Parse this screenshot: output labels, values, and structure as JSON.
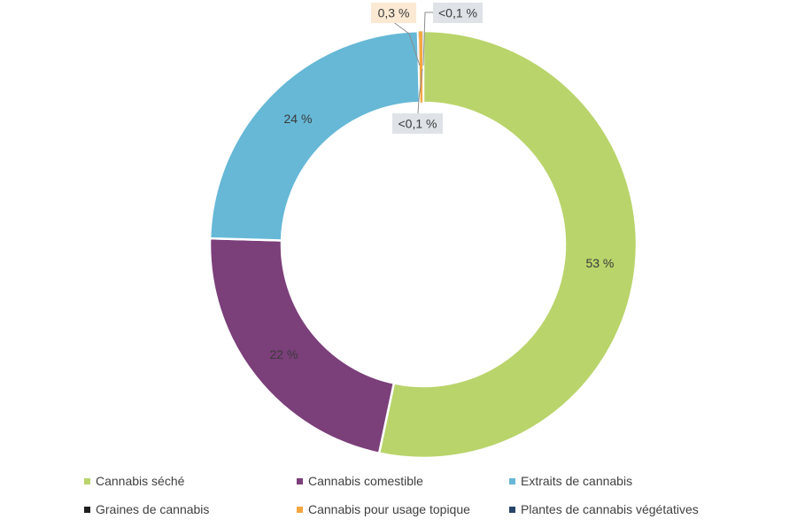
{
  "chart_data": {
    "type": "pie",
    "style": "donut",
    "categories": [
      "Cannabis séché",
      "Cannabis comestible",
      "Extraits de cannabis",
      "Graines de cannabis",
      "Cannabis pour usage topique",
      "Plantes de cannabis végétatives"
    ],
    "values": [
      53,
      22,
      24,
      0.05,
      0.3,
      0.05
    ],
    "data_labels": [
      "53 %",
      "22 %",
      "24 %",
      "<0,1 %",
      "0,3 %",
      "<0,1 %"
    ],
    "colors": [
      "#b9d46b",
      "#7b3f7a",
      "#66b8d6",
      "#1f1f1f",
      "#f4a640",
      "#27446a"
    ],
    "legend_position": "bottom"
  }
}
